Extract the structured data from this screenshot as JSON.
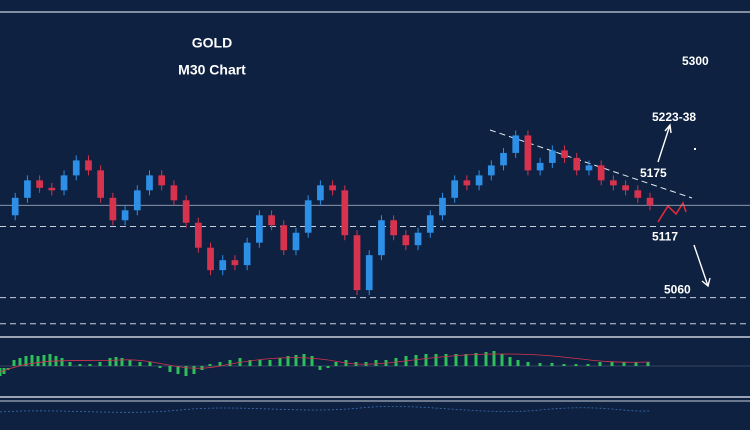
{
  "chart_data": {
    "type": "candlestick",
    "title": "GOLD",
    "subtitle": "M30 Chart",
    "annotations": [
      "5300",
      "5223-38",
      "5175"
    ],
    "values": [
      5126,
      5140,
      5154,
      5148,
      5146,
      5158,
      5170,
      5162,
      5140,
      5122,
      5130,
      5146,
      5158,
      5150,
      5138,
      5120,
      5100,
      5082,
      5090,
      5086,
      5104,
      5126,
      5118,
      5098,
      5112,
      5138,
      5150,
      5146,
      5110,
      5066,
      5094,
      5122,
      5110,
      5102,
      5112,
      5126,
      5140,
      5154,
      5150,
      5158,
      5166,
      5176,
      5190,
      5162,
      5168,
      5178,
      5172,
      5162,
      5166,
      5154,
      5150,
      5146,
      5140,
      5134
    ],
    "color_up": "#2d8fe6",
    "color_down": "#d8334e",
    "ylim": [
      5034,
      5289
    ],
    "yticks": [
      5117,
      5060
    ],
    "hlines": [
      5134,
      5039
    ]
  }
}
